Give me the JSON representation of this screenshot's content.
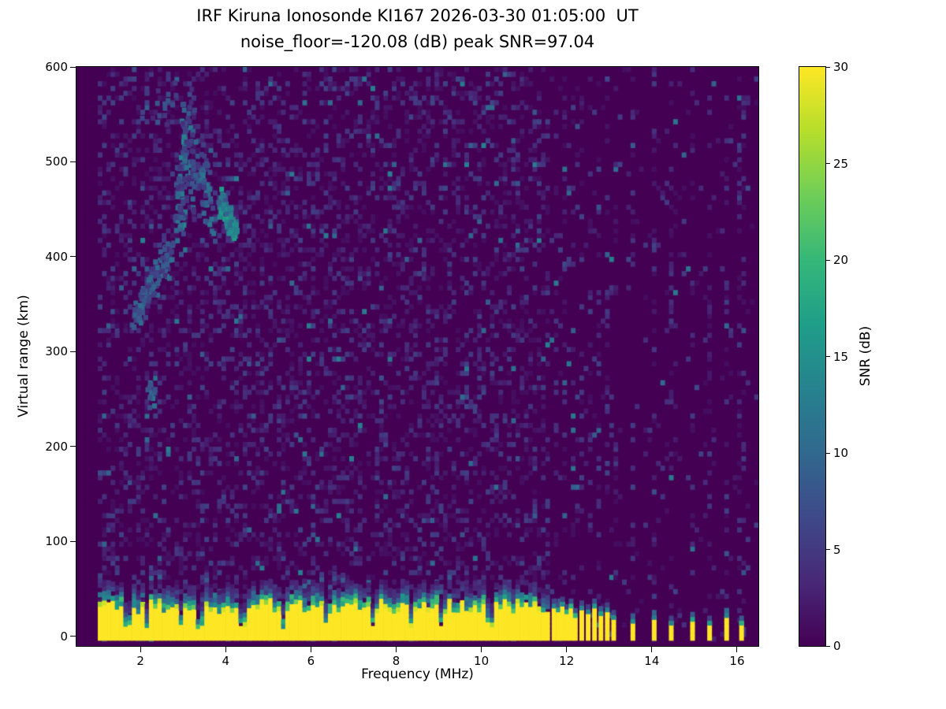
{
  "chart_data": {
    "type": "heatmap",
    "title": "IRF Kiruna Ionosonde KI167 2026-03-30 01:05:00  UT",
    "subtitle": "noise_floor=-120.08 (dB) peak SNR=97.04",
    "station": "IRF Kiruna Ionosonde KI167",
    "timestamp_ut": "2026-03-30 01:05:00",
    "noise_floor_db": -120.08,
    "peak_snr_db": 97.04,
    "xlabel": "Frequency (MHz)",
    "ylabel": "Virtual range (km)",
    "colorbar_label": "SNR (dB)",
    "xlim": [
      0.5,
      16.5
    ],
    "ylim": [
      -10,
      600
    ],
    "clim": [
      0,
      30
    ],
    "x_ticks": [
      2,
      4,
      6,
      8,
      10,
      12,
      14,
      16
    ],
    "y_ticks": [
      0,
      100,
      200,
      300,
      400,
      500,
      600
    ],
    "colorbar_ticks": [
      0,
      5,
      10,
      15,
      20,
      25,
      30
    ],
    "colormap": "viridis",
    "colormap_stops": [
      "#440154",
      "#482878",
      "#3e4989",
      "#31688e",
      "#26828e",
      "#1f9e89",
      "#35b779",
      "#6ece58",
      "#b5de2b",
      "#fde725"
    ],
    "grid": false,
    "features": {
      "background_snr": 0,
      "speckle": {
        "freq_min": 1.0,
        "freq_max": 16.4,
        "density_low_band": 0.28,
        "density_high_band": 0.05,
        "high_band_start": 11.55,
        "stripe_density": 0.22
      },
      "ground_clutter": {
        "freq_start": 1.0,
        "freq_end": 11.55,
        "solid_top_km": 30,
        "top_jitter_km": 6,
        "snr": 30,
        "notch_freqs": [
          1.65,
          2.1,
          2.9,
          3.35,
          4.35,
          5.3,
          6.3,
          7.4,
          8.3,
          9.0,
          10.15
        ]
      },
      "interference_bars": [
        {
          "f": 11.65,
          "h": 30
        },
        {
          "f": 11.75,
          "h": 26
        },
        {
          "f": 11.85,
          "h": 32
        },
        {
          "f": 11.95,
          "h": 24
        },
        {
          "f": 12.05,
          "h": 30
        },
        {
          "f": 12.15,
          "h": 20
        },
        {
          "f": 12.3,
          "h": 28
        },
        {
          "f": 12.45,
          "h": 24
        },
        {
          "f": 12.6,
          "h": 30
        },
        {
          "f": 12.75,
          "h": 22
        },
        {
          "f": 12.9,
          "h": 26
        },
        {
          "f": 13.05,
          "h": 18
        },
        {
          "f": 13.5,
          "h": 14
        },
        {
          "f": 14.0,
          "h": 18
        },
        {
          "f": 14.4,
          "h": 12
        },
        {
          "f": 14.9,
          "h": 16
        },
        {
          "f": 15.3,
          "h": 12
        },
        {
          "f": 15.7,
          "h": 20
        },
        {
          "f": 16.05,
          "h": 12
        }
      ],
      "noise_stripe_freqs": [
        11.7,
        11.9,
        12.1,
        12.3,
        12.5,
        12.7,
        12.9,
        13.1,
        13.5,
        14.0,
        14.4,
        14.9,
        15.3,
        15.7,
        16.05
      ],
      "trace_segments": [
        {
          "f0": 1.75,
          "r0": 330,
          "f1": 2.7,
          "r1": 408,
          "n": 120,
          "sf": 0.05,
          "sr": 9,
          "snr_lo": 3,
          "snr_hi": 11
        },
        {
          "f0": 2.85,
          "r0": 415,
          "f1": 3.0,
          "r1": 530,
          "n": 80,
          "sf": 0.06,
          "sr": 14,
          "snr_lo": 4,
          "snr_hi": 14
        },
        {
          "f0": 3.05,
          "r0": 545,
          "f1": 3.3,
          "r1": 445,
          "n": 55,
          "sf": 0.07,
          "sr": 14,
          "snr_lo": 3,
          "snr_hi": 12
        },
        {
          "f0": 3.4,
          "r0": 500,
          "f1": 3.6,
          "r1": 440,
          "n": 50,
          "sf": 0.07,
          "sr": 12,
          "snr_lo": 4,
          "snr_hi": 12
        },
        {
          "f0": 3.85,
          "r0": 455,
          "f1": 4.15,
          "r1": 428,
          "n": 90,
          "sf": 0.05,
          "sr": 7,
          "snr_lo": 7,
          "snr_hi": 17
        },
        {
          "f0": 2.2,
          "r0": 555,
          "f1": 3.2,
          "r1": 565,
          "n": 22,
          "sf": 0.15,
          "sr": 12,
          "snr_lo": 3,
          "snr_hi": 8
        },
        {
          "f0": 2.15,
          "r0": 248,
          "f1": 2.25,
          "r1": 260,
          "n": 14,
          "sf": 0.04,
          "sr": 6,
          "snr_lo": 5,
          "snr_hi": 12
        }
      ]
    }
  }
}
